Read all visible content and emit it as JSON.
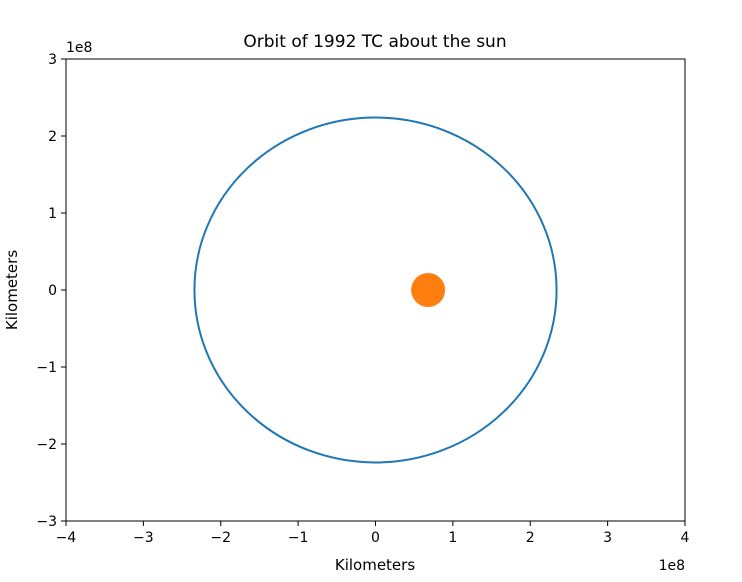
{
  "chart_data": {
    "type": "scatter",
    "title": "Orbit of 1992 TC about the sun",
    "xlabel": "Kilometers",
    "ylabel": "Kilometers",
    "x_offset_label": "1e8",
    "y_offset_label": "1e8",
    "xlim": [
      -4,
      4
    ],
    "ylim": [
      -3,
      3
    ],
    "x_ticks": [
      -4,
      -3,
      -2,
      -1,
      0,
      1,
      2,
      3,
      4
    ],
    "y_ticks": [
      -3,
      -2,
      -1,
      0,
      1,
      2,
      3
    ],
    "x_tick_labels": [
      "−4",
      "−3",
      "−2",
      "−1",
      "0",
      "1",
      "2",
      "3",
      "4"
    ],
    "y_tick_labels": [
      "−3",
      "−2",
      "−1",
      "0",
      "1",
      "2",
      "3"
    ],
    "grid": false,
    "orbit": {
      "type": "ellipse",
      "color": "#1f77b4",
      "center": [
        0,
        0
      ],
      "semi_major_x": 2.34,
      "semi_minor_y": 2.24
    },
    "sun": {
      "x": 0.68,
      "y": 0,
      "color": "#ff7f0e"
    }
  }
}
